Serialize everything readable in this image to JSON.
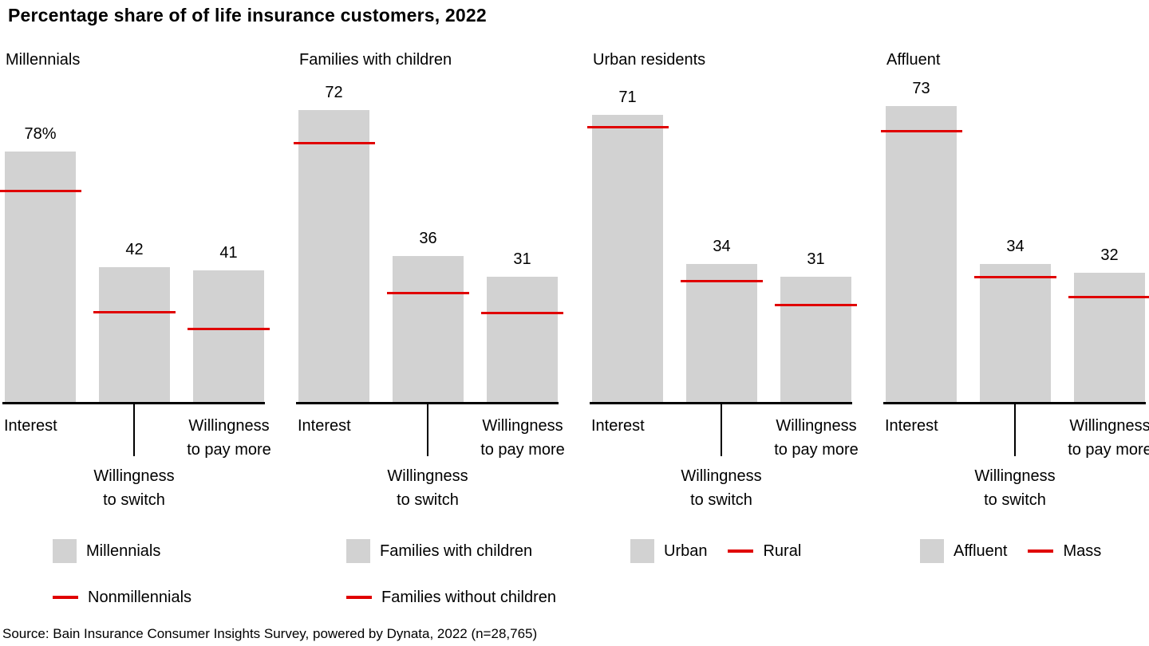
{
  "title": "Percentage share of of life insurance customers, 2022",
  "source": "Source: Bain Insurance Consumer Insights Survey, powered by Dynata, 2022 (n=28,765)",
  "colors": {
    "bar": "#d2d2d2",
    "reference_line": "#e00000",
    "axis": "#000000"
  },
  "chart_data": [
    {
      "type": "bar",
      "title": "Millennials",
      "categories": [
        "Interest",
        "Willingness to switch",
        "Willingness to pay more"
      ],
      "category_lines": [
        [
          "Interest"
        ],
        [
          "Willingness",
          "to switch"
        ],
        [
          "Willingness",
          "to pay more"
        ]
      ],
      "ylim": [
        0,
        98
      ],
      "grid": false,
      "series": [
        {
          "name": "Millennials",
          "type": "bar",
          "values": [
            78,
            42,
            41
          ],
          "labels": [
            "78%",
            "42",
            "41"
          ]
        },
        {
          "name": "Nonmillennials",
          "type": "reference-line",
          "values": [
            66,
            28,
            23
          ]
        }
      ],
      "legend_rows": [
        [
          {
            "swatch": "bar",
            "label": "Millennials"
          }
        ],
        [
          {
            "swatch": "line",
            "label": "Nonmillennials"
          }
        ]
      ]
    },
    {
      "type": "bar",
      "title": "Families with children",
      "categories": [
        "Interest",
        "Willingness to switch",
        "Willingness to pay more"
      ],
      "category_lines": [
        [
          "Interest"
        ],
        [
          "Willingness",
          "to switch"
        ],
        [
          "Willingness",
          "to pay more"
        ]
      ],
      "ylim": [
        0,
        77.6
      ],
      "grid": false,
      "series": [
        {
          "name": "Families with children",
          "type": "bar",
          "values": [
            72,
            36,
            31
          ],
          "labels": [
            "72",
            "36",
            "31"
          ]
        },
        {
          "name": "Families without children",
          "type": "reference-line",
          "values": [
            64,
            27,
            22
          ]
        }
      ],
      "legend_rows": [
        [
          {
            "swatch": "bar",
            "label": "Families with children"
          }
        ],
        [
          {
            "swatch": "line",
            "label": "Families without children"
          }
        ]
      ]
    },
    {
      "type": "bar",
      "title": "Urban residents",
      "categories": [
        "Interest",
        "Willingness to switch",
        "Willingness to pay more"
      ],
      "category_lines": [
        [
          "Interest"
        ],
        [
          "Willingness",
          "to switch"
        ],
        [
          "Willingness",
          "to pay more"
        ]
      ],
      "ylim": [
        0,
        77.6
      ],
      "grid": false,
      "series": [
        {
          "name": "Urban",
          "type": "bar",
          "values": [
            71,
            34,
            31
          ],
          "labels": [
            "71",
            "34",
            "31"
          ]
        },
        {
          "name": "Rural",
          "type": "reference-line",
          "values": [
            68,
            30,
            24
          ]
        }
      ],
      "legend_rows": [
        [
          {
            "swatch": "bar",
            "label": "Urban"
          },
          {
            "swatch": "line",
            "label": "Rural"
          }
        ]
      ]
    },
    {
      "type": "bar",
      "title": "Affluent",
      "categories": [
        "Interest",
        "Willingness to switch",
        "Willingness to pay more"
      ],
      "category_lines": [
        [
          "Interest"
        ],
        [
          "Willingness",
          "to switch"
        ],
        [
          "Willingness",
          "to pay more"
        ]
      ],
      "ylim": [
        0,
        77.6
      ],
      "grid": false,
      "series": [
        {
          "name": "Affluent",
          "type": "bar",
          "values": [
            73,
            34,
            32
          ],
          "labels": [
            "73",
            "34",
            "32"
          ]
        },
        {
          "name": "Mass",
          "type": "reference-line",
          "values": [
            67,
            31,
            26
          ]
        }
      ],
      "legend_rows": [
        [
          {
            "swatch": "bar",
            "label": "Affluent"
          },
          {
            "swatch": "line",
            "label": "Mass"
          }
        ]
      ]
    }
  ]
}
